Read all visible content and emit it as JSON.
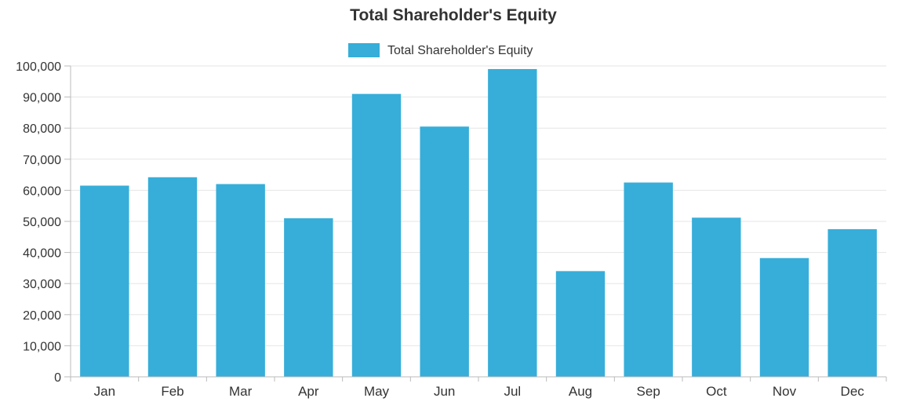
{
  "chart_data": {
    "type": "bar",
    "title": "Total Shareholder's Equity",
    "legend": {
      "position": "top",
      "entries": [
        "Total Shareholder's Equity"
      ]
    },
    "categories": [
      "Jan",
      "Feb",
      "Mar",
      "Apr",
      "May",
      "Jun",
      "Jul",
      "Aug",
      "Sep",
      "Oct",
      "Nov",
      "Dec"
    ],
    "series": [
      {
        "name": "Total Shareholder's Equity",
        "color": "#36aed9",
        "values": [
          61500,
          64200,
          62000,
          51000,
          91000,
          80500,
          99000,
          34000,
          62500,
          51200,
          38200,
          47500
        ]
      }
    ],
    "y_ticks": [
      "0",
      "10,000",
      "20,000",
      "30,000",
      "40,000",
      "50,000",
      "60,000",
      "70,000",
      "80,000",
      "90,000",
      "100,000"
    ],
    "ylim": [
      0,
      100000
    ],
    "xlabel": "",
    "ylabel": "",
    "grid": true,
    "colors": {
      "bar": "#36aed9",
      "grid": "#e6e6e6",
      "axis": "#bbbbbb",
      "text": "#333333"
    }
  }
}
